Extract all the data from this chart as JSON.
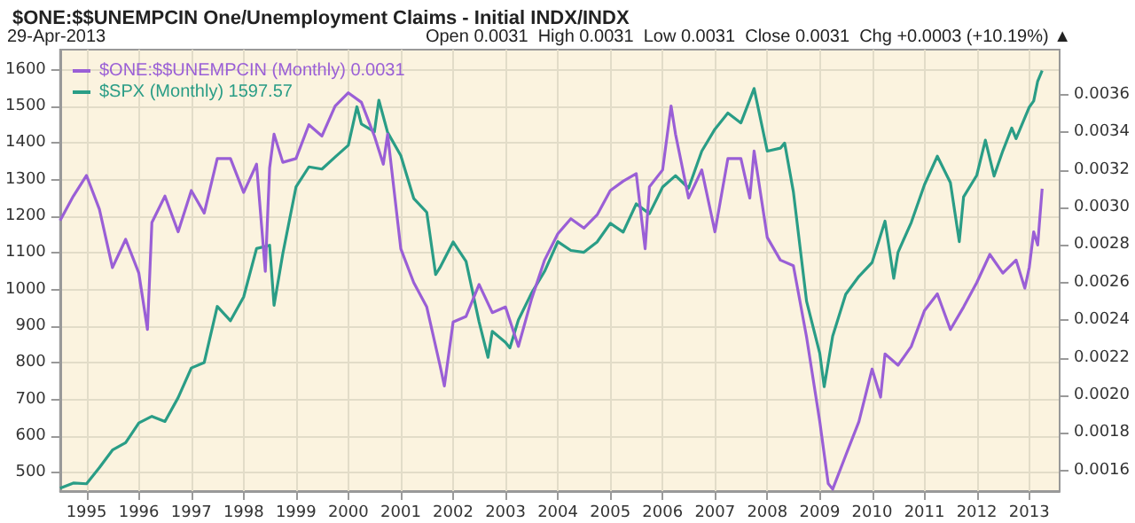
{
  "chart_data": {
    "type": "line",
    "title": "$ONE:$$UNEMPCIN One/Unemployment Claims - Initial INDX/INDX",
    "annotations": [
      "29-Apr-2013",
      "Open 0.0031  High 0.0031  Low 0.0031  Close 0.0031  Chg +0.0003 (+10.19%) ▲"
    ],
    "series": [
      {
        "name": "$ONE:$$UNEMPCIN (Monthly) 0.0031",
        "color": "#9a5fd6",
        "axis": "y2",
        "x": [
          "1994-07",
          "1994-10",
          "1995-01",
          "1995-04",
          "1995-07",
          "1995-10",
          "1996-01",
          "1996-03",
          "1996-04",
          "1996-07",
          "1996-10",
          "1997-01",
          "1997-04",
          "1997-07",
          "1997-10",
          "1998-01",
          "1998-04",
          "1998-06",
          "1998-07",
          "1998-08",
          "1998-10",
          "1999-01",
          "1999-04",
          "1999-07",
          "1999-10",
          "2000-01",
          "2000-04",
          "2000-07",
          "2000-09",
          "2000-10",
          "2001-01",
          "2001-04",
          "2001-07",
          "2001-10",
          "2001-11",
          "2002-01",
          "2002-04",
          "2002-07",
          "2002-10",
          "2003-01",
          "2003-04",
          "2003-07",
          "2003-10",
          "2004-01",
          "2004-04",
          "2004-07",
          "2004-10",
          "2005-01",
          "2005-04",
          "2005-07",
          "2005-09",
          "2005-10",
          "2006-01",
          "2006-03",
          "2006-04",
          "2006-07",
          "2006-10",
          "2007-01",
          "2007-04",
          "2007-07",
          "2007-09",
          "2007-10",
          "2008-01",
          "2008-04",
          "2008-07",
          "2008-10",
          "2009-01",
          "2009-03",
          "2009-04",
          "2009-07",
          "2009-10",
          "2010-01",
          "2010-03",
          "2010-04",
          "2010-07",
          "2010-10",
          "2011-01",
          "2011-04",
          "2011-07",
          "2011-10",
          "2012-01",
          "2012-04",
          "2012-07",
          "2012-10",
          "2012-12",
          "2013-01",
          "2013-02",
          "2013-03",
          "2013-04"
        ],
        "values": [
          0.00293,
          0.00306,
          0.00317,
          0.00299,
          0.00268,
          0.00283,
          0.00265,
          0.00235,
          0.00292,
          0.00306,
          0.00287,
          0.00309,
          0.00297,
          0.00326,
          0.00326,
          0.00308,
          0.00323,
          0.00266,
          0.00321,
          0.00339,
          0.00324,
          0.00326,
          0.00344,
          0.00338,
          0.00354,
          0.00361,
          0.00356,
          0.00338,
          0.00323,
          0.00339,
          0.00278,
          0.0026,
          0.00247,
          0.00216,
          0.00205,
          0.00239,
          0.00242,
          0.00259,
          0.00244,
          0.00247,
          0.00226,
          0.00251,
          0.00272,
          0.00286,
          0.00294,
          0.00289,
          0.00296,
          0.00309,
          0.00314,
          0.00318,
          0.00278,
          0.00311,
          0.0032,
          0.00354,
          0.00339,
          0.00305,
          0.0032,
          0.00287,
          0.00326,
          0.00326,
          0.00305,
          0.0033,
          0.00284,
          0.00272,
          0.00269,
          0.00231,
          0.00186,
          0.00153,
          0.0015,
          0.00168,
          0.00186,
          0.00214,
          0.00199,
          0.00222,
          0.00216,
          0.00226,
          0.00245,
          0.00254,
          0.00235,
          0.00247,
          0.0026,
          0.00275,
          0.00265,
          0.00272,
          0.00257,
          0.00268,
          0.00287,
          0.0028,
          0.0031
        ]
      },
      {
        "name": "$SPX (Monthly) 1597.57",
        "color": "#2a9d86",
        "x": [
          "1994-07",
          "1994-10",
          "1995-01",
          "1995-04",
          "1995-07",
          "1995-10",
          "1996-01",
          "1996-04",
          "1996-07",
          "1996-10",
          "1997-01",
          "1997-04",
          "1997-07",
          "1997-10",
          "1998-01",
          "1998-04",
          "1998-07",
          "1998-08",
          "1998-10",
          "1999-01",
          "1999-04",
          "1999-07",
          "1999-10",
          "2000-01",
          "2000-03",
          "2000-04",
          "2000-07",
          "2000-08",
          "2000-10",
          "2001-01",
          "2001-04",
          "2001-07",
          "2001-09",
          "2001-10",
          "2002-01",
          "2002-04",
          "2002-07",
          "2002-09",
          "2002-10",
          "2003-01",
          "2003-02",
          "2003-04",
          "2003-07",
          "2003-10",
          "2004-01",
          "2004-04",
          "2004-07",
          "2004-10",
          "2005-01",
          "2005-04",
          "2005-07",
          "2005-10",
          "2006-01",
          "2006-04",
          "2006-07",
          "2006-10",
          "2007-01",
          "2007-04",
          "2007-07",
          "2007-10",
          "2008-01",
          "2008-04",
          "2008-05",
          "2008-07",
          "2008-10",
          "2009-01",
          "2009-02",
          "2009-04",
          "2009-07",
          "2009-10",
          "2010-01",
          "2010-04",
          "2010-06",
          "2010-07",
          "2010-10",
          "2011-01",
          "2011-04",
          "2011-07",
          "2011-09",
          "2011-10",
          "2012-01",
          "2012-03",
          "2012-05",
          "2012-07",
          "2012-09",
          "2012-10",
          "2013-01",
          "2013-02",
          "2013-03",
          "2013-04"
        ],
        "values": [
          458,
          472,
          470,
          514,
          562,
          582,
          636,
          654,
          640,
          705,
          786,
          801,
          954,
          915,
          980,
          1112,
          1121,
          957,
          1098,
          1280,
          1335,
          1329,
          1362,
          1394,
          1499,
          1452,
          1431,
          1517,
          1429,
          1366,
          1249,
          1211,
          1041,
          1060,
          1130,
          1077,
          912,
          815,
          886,
          856,
          841,
          917,
          990,
          1050,
          1131,
          1107,
          1102,
          1130,
          1181,
          1157,
          1234,
          1207,
          1280,
          1311,
          1277,
          1378,
          1438,
          1482,
          1455,
          1549,
          1378,
          1386,
          1400,
          1267,
          968,
          826,
          735,
          873,
          987,
          1036,
          1074,
          1187,
          1031,
          1102,
          1183,
          1286,
          1364,
          1292,
          1131,
          1253,
          1312,
          1408,
          1310,
          1379,
          1441,
          1412,
          1498,
          1515,
          1569,
          1598
        ]
      }
    ],
    "xlim": [
      "1994-07",
      "2013-08"
    ],
    "xticks": [
      "1995",
      "1996",
      "1997",
      "1998",
      "1999",
      "2000",
      "2001",
      "2002",
      "2003",
      "2004",
      "2005",
      "2006",
      "2007",
      "2008",
      "2009",
      "2010",
      "2011",
      "2012",
      "2013"
    ],
    "ylim": [
      450,
      1655
    ],
    "yticks": [
      500,
      600,
      700,
      800,
      900,
      1000,
      1100,
      1200,
      1300,
      1400,
      1500,
      1600
    ],
    "y2lim": [
      0.00149,
      0.00384
    ],
    "y2ticks": [
      0.0016,
      0.0018,
      {
        "value": 0.002,
        "label": "0.0020"
      },
      0.0022,
      0.0024,
      0.0026,
      0.0028,
      {
        "value": 0.003,
        "label": "0.0030"
      },
      0.0032,
      0.0034,
      0.0036
    ],
    "grid": true,
    "legend": "top left",
    "marker": "none",
    "line_style": "solid"
  }
}
